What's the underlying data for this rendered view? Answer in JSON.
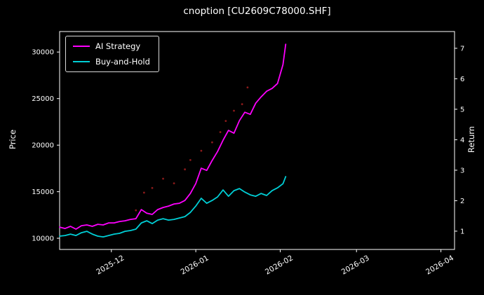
{
  "chart_data": {
    "type": "line",
    "title": "cnoption [CU2609C78000.SHF]",
    "ylabel_left": "Price",
    "ylabel_right": "Return",
    "background": "#000000",
    "grid": false,
    "legend_position": "upper-left",
    "x_tick_labels": [
      "2025-12",
      "2026-01",
      "2026-02",
      "2026-03",
      "2026-04"
    ],
    "x_tick_dates": [
      "2025-12-01",
      "2026-01-01",
      "2026-02-01",
      "2026-03-01",
      "2026-04-01"
    ],
    "price_ticks": [
      10000,
      15000,
      20000,
      25000,
      30000
    ],
    "return_ticks": [
      1,
      2,
      3,
      4,
      5,
      6,
      7
    ],
    "price_range": [
      8800,
      32200
    ],
    "return_range": [
      0.4,
      7.55
    ],
    "x_range": [
      "2025-11-12",
      "2026-04-06"
    ],
    "x": [
      "2025-11-12",
      "2025-11-14",
      "2025-11-16",
      "2025-11-18",
      "2025-11-20",
      "2025-11-22",
      "2025-11-24",
      "2025-11-26",
      "2025-11-28",
      "2025-11-30",
      "2025-12-02",
      "2025-12-04",
      "2025-12-06",
      "2025-12-08",
      "2025-12-10",
      "2025-12-12",
      "2025-12-14",
      "2025-12-16",
      "2025-12-18",
      "2025-12-20",
      "2025-12-22",
      "2025-12-24",
      "2025-12-26",
      "2025-12-28",
      "2025-12-30",
      "2026-01-01",
      "2026-01-03",
      "2026-01-05",
      "2026-01-07",
      "2026-01-09",
      "2026-01-11",
      "2026-01-13",
      "2026-01-15",
      "2026-01-17",
      "2026-01-19",
      "2026-01-21",
      "2026-01-23",
      "2026-01-25",
      "2026-01-27",
      "2026-01-29",
      "2026-01-31",
      "2026-02-02",
      "2026-02-03"
    ],
    "series": [
      {
        "name": "AI Strategy",
        "color": "#ff00ff",
        "axis": "price",
        "values": [
          11200,
          11050,
          11280,
          10980,
          11350,
          11430,
          11280,
          11500,
          11430,
          11650,
          11650,
          11800,
          11880,
          12030,
          12100,
          13080,
          12700,
          12560,
          13080,
          13310,
          13460,
          13680,
          13760,
          14060,
          14810,
          15870,
          17520,
          17290,
          18350,
          19320,
          20530,
          21580,
          21280,
          22630,
          23530,
          23310,
          24510,
          25190,
          25790,
          26090,
          26620,
          28650,
          30830
        ]
      },
      {
        "name": "Buy-and-Hold",
        "color": "#00cfd6",
        "axis": "price",
        "values": [
          10230,
          10300,
          10450,
          10300,
          10600,
          10750,
          10450,
          10230,
          10150,
          10300,
          10450,
          10530,
          10750,
          10830,
          10980,
          11650,
          11880,
          11580,
          11950,
          12100,
          11950,
          12030,
          12180,
          12330,
          12780,
          13460,
          14290,
          13760,
          14060,
          14440,
          15190,
          14510,
          15110,
          15340,
          14960,
          14660,
          14510,
          14810,
          14590,
          15110,
          15410,
          15860,
          16620
        ]
      }
    ],
    "markers": {
      "name": "trade-signal-dots",
      "color": "#8b1a1a",
      "points": [
        [
          "2025-12-10",
          13000
        ],
        [
          "2025-12-13",
          14900
        ],
        [
          "2025-12-16",
          15400
        ],
        [
          "2025-12-20",
          16400
        ],
        [
          "2025-12-24",
          15900
        ],
        [
          "2025-12-28",
          17400
        ],
        [
          "2025-12-30",
          18400
        ],
        [
          "2026-01-03",
          19400
        ],
        [
          "2026-01-07",
          20300
        ],
        [
          "2026-01-10",
          21400
        ],
        [
          "2026-01-12",
          22600
        ],
        [
          "2026-01-15",
          23700
        ],
        [
          "2026-01-18",
          24400
        ],
        [
          "2026-01-20",
          26200
        ]
      ]
    }
  }
}
